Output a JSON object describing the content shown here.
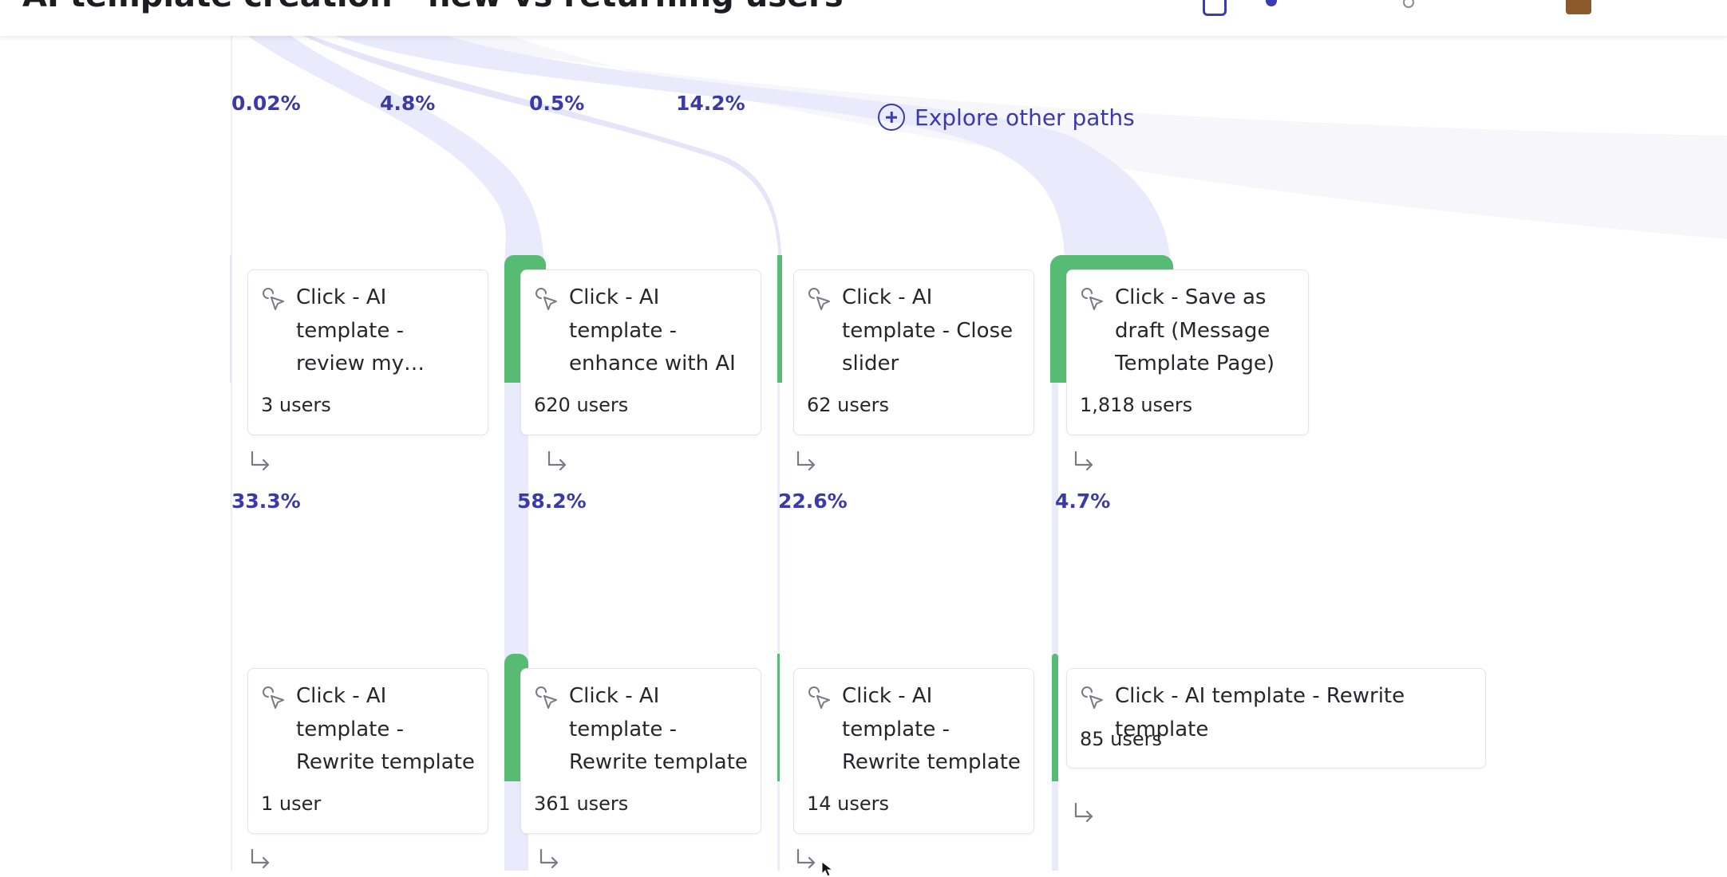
{
  "header": {
    "title": "AI template creation - new vs returning users"
  },
  "explore": {
    "label": "Explore other paths"
  },
  "top_percentages": [
    "0.02%",
    "4.8%",
    "0.5%",
    "14.2%"
  ],
  "step_percentages": [
    "33.3%",
    "58.2%",
    "22.6%",
    "4.7%"
  ],
  "row1": [
    {
      "label": "Click - AI template - review my template (fir…",
      "users": "3 users"
    },
    {
      "label": "Click - AI template - enhance with AI",
      "users": "620 users"
    },
    {
      "label": "Click - AI template - Close slider",
      "users": "62 users"
    },
    {
      "label": "Click - Save as draft (Message Template Page)",
      "users": "1,818 users"
    }
  ],
  "row2": [
    {
      "label": "Click - AI template - Rewrite template",
      "users": "1 user"
    },
    {
      "label": "Click - AI template - Rewrite template",
      "users": "361 users"
    },
    {
      "label": "Click - AI template - Rewrite template",
      "users": "14 users"
    },
    {
      "label": "Click - AI template - Rewrite template",
      "users": "85 users"
    }
  ],
  "icons": {
    "step": "cursor-click-icon",
    "next": "arrow-return-right-icon",
    "explore": "plus-circle-icon"
  },
  "colors": {
    "accent": "#3a3aab",
    "flow": "#e9eafb",
    "success": "#58bb74"
  }
}
